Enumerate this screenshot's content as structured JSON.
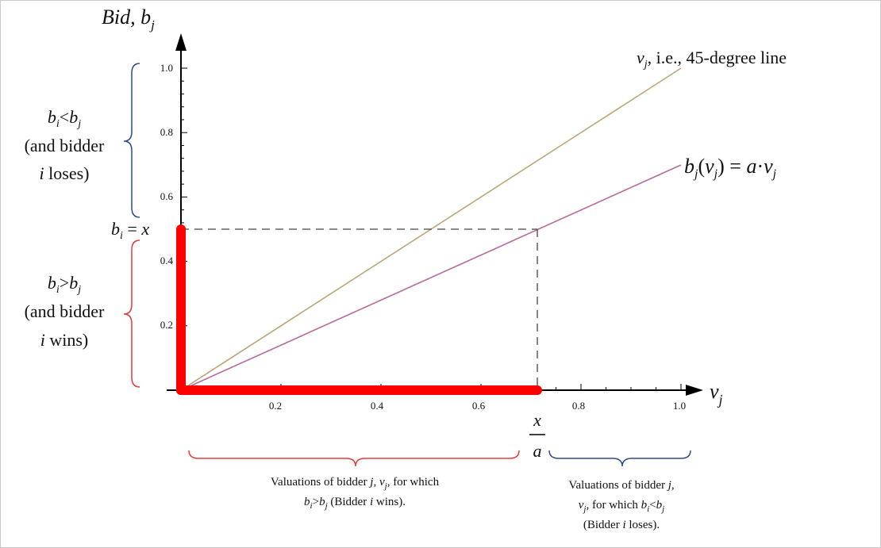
{
  "axes": {
    "y_title_main": "Bid,",
    "y_title_var": "b",
    "y_title_sub": "j",
    "x_title_var": "v",
    "x_title_sub": "j",
    "x_ticks": [
      "0.2",
      "0.4",
      "0.6",
      "0.8",
      "1.0"
    ],
    "y_ticks": [
      "0.2",
      "0.4",
      "0.6",
      "0.8",
      "1.0"
    ]
  },
  "labels": {
    "diag_v": "v",
    "diag_sub": "j",
    "diag_text": ", i.e., 45-degree line",
    "bid_fn_b": "b",
    "bid_fn_sub": "j",
    "bid_fn_arg_v": "v",
    "bid_fn_arg_sub": "j",
    "bid_fn_rhs_a": "a",
    "bid_fn_rhs_v": "v",
    "bid_fn_rhs_sub": "j",
    "bi_eq_b": "b",
    "bi_eq_sub": "i",
    "bi_eq_eq": "=",
    "bi_eq_x": "x",
    "frac_num": "x",
    "frac_den": "a"
  },
  "left_annotations": {
    "upper": {
      "line1_b": "b",
      "line1_sub_i": "i",
      "line1_op": "<",
      "line1_b2": "b",
      "line1_sub_j": "j",
      "line2": "(and bidder",
      "line3_i": "i",
      "line3_rest": " loses)"
    },
    "lower": {
      "line1_b": "b",
      "line1_sub_i": "i",
      "line1_op": ">",
      "line1_b2": "b",
      "line1_sub_j": "j",
      "line2": "(and bidder",
      "line3_i": "i",
      "line3_rest": " wins)"
    }
  },
  "bottom_annotations": {
    "left": {
      "line1_a": "Valuations of bidder ",
      "line1_j": "j",
      "line1_b": ", ",
      "line1_v": "v",
      "line1_vsub": "j",
      "line1_c": ", for which",
      "line2_b": "b",
      "line2_isub": "i",
      "line2_op": ">",
      "line2_b2": "b",
      "line2_jsub": "j",
      "line2_a": " (Bidder ",
      "line2_i": "i",
      "line2_c": " wins)."
    },
    "right": {
      "line1_a": "Valuations of bidder ",
      "line1_j": "j",
      "line1_c": ",",
      "line2_v": "v",
      "line2_vsub": "j",
      "line2_a": ", for which ",
      "line2_b": "b",
      "line2_isub": "i",
      "line2_op": "<",
      "line2_b2": "b",
      "line2_jsub": "j",
      "line3_a": "(Bidder ",
      "line3_i": "i",
      "line3_c": " loses)."
    }
  },
  "colors": {
    "diagonal": "#b8a878",
    "bid_line": "#b86a9a",
    "highlight": "#ff0000",
    "brace_red": "#e8383a",
    "brace_blue": "#2f4a8a",
    "dashed": "#444444"
  }
}
